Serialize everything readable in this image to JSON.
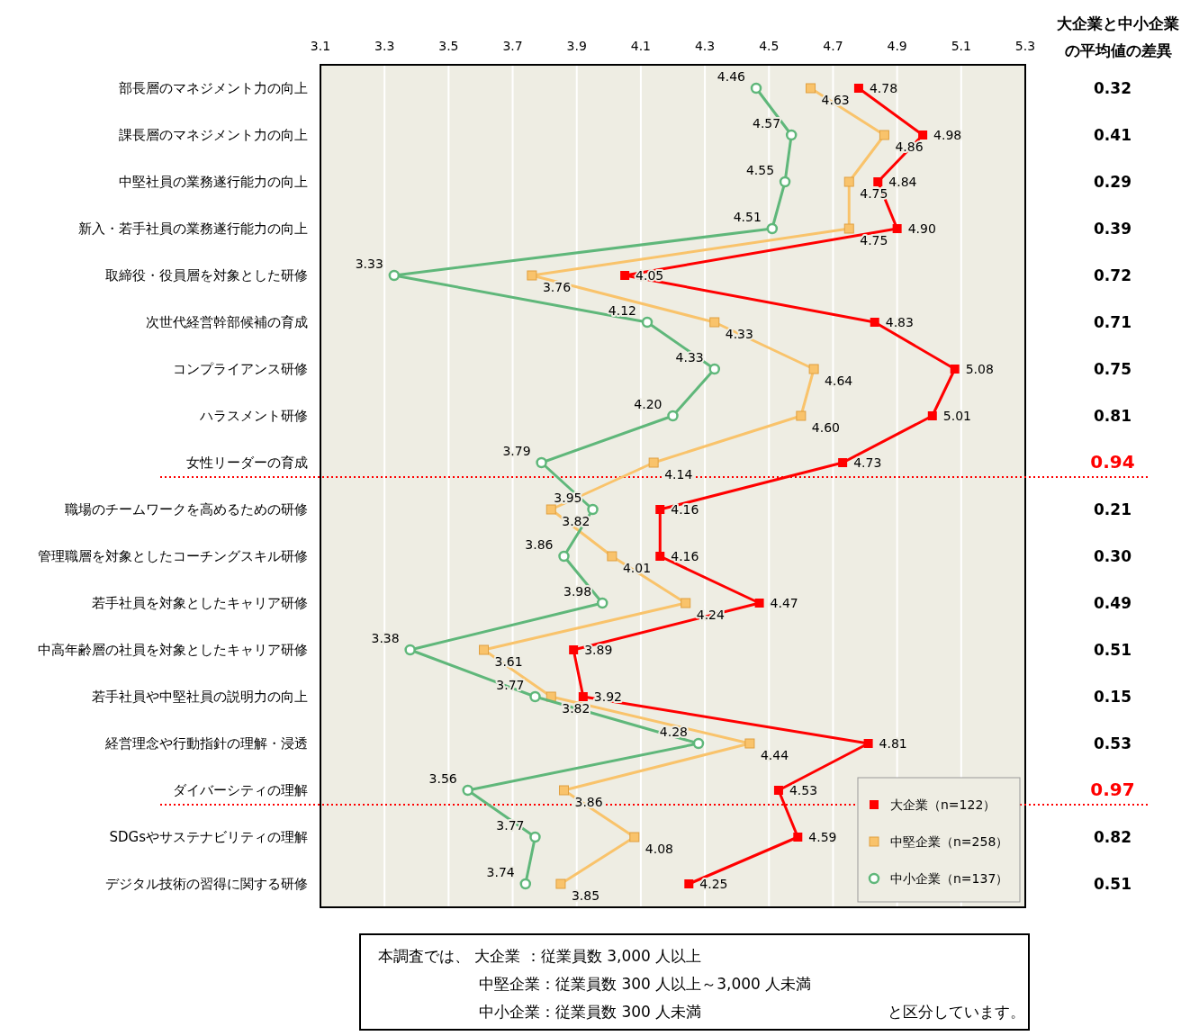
{
  "chart_data": {
    "type": "line",
    "orientation": "horizontal",
    "categories": [
      "部長層のマネジメント力の向上",
      "課長層のマネジメント力の向上",
      "中堅社員の業務遂行能力の向上",
      "新入・若手社員の業務遂行能力の向上",
      "取締役・役員層を対象とした研修",
      "次世代経営幹部候補の育成",
      "コンプライアンス研修",
      "ハラスメント研修",
      "女性リーダーの育成",
      "職場のチームワークを高めるための研修",
      "管理職層を対象としたコーチングスキル研修",
      "若手社員を対象としたキャリア研修",
      "中高年齢層の社員を対象としたキャリア研修",
      "若手社員や中堅社員の説明力の向上",
      "経営理念や行動指針の理解・浸透",
      "ダイバーシティの理解",
      "SDGsやサステナビリティの理解",
      "デジタル技術の習得に関する研修"
    ],
    "series": [
      {
        "name": "大企業（n=122）",
        "color": "#ff0000",
        "marker": "square",
        "values": [
          4.78,
          4.98,
          4.84,
          4.9,
          4.05,
          4.83,
          5.08,
          5.01,
          4.73,
          4.16,
          4.16,
          4.47,
          3.89,
          3.92,
          4.81,
          4.53,
          4.59,
          4.25
        ],
        "value_labels": [
          "4.78",
          "4.98",
          "4.84",
          "4.90",
          "4.05",
          "4.83",
          "5.08",
          "5.01",
          "4.73",
          "4.16",
          "4.16",
          "4.47",
          "3.89",
          "3.92",
          "4.81",
          "4.53",
          "4.59",
          "4.25"
        ]
      },
      {
        "name": "中堅企業（n=258）",
        "color": "#f9c36b",
        "marker": "square",
        "values": [
          4.63,
          4.86,
          4.75,
          4.75,
          3.76,
          4.33,
          4.64,
          4.6,
          4.14,
          3.82,
          4.01,
          4.24,
          3.61,
          3.82,
          4.44,
          3.86,
          4.08,
          3.85
        ],
        "value_labels": [
          "4.63",
          "4.86",
          "4.75",
          "4.75",
          "3.76",
          "4.33",
          "4.64",
          "4.60",
          "4.14",
          "3.82",
          "4.01",
          "4.24",
          "3.61",
          "3.82",
          "4.44",
          "3.86",
          "4.08",
          "3.85"
        ]
      },
      {
        "name": "中小企業（n=137）",
        "color": "#5fb77a",
        "marker": "circle",
        "values": [
          4.46,
          4.57,
          4.55,
          4.51,
          3.33,
          4.12,
          4.33,
          4.2,
          3.79,
          3.95,
          3.86,
          3.98,
          3.38,
          3.77,
          4.28,
          3.56,
          3.77,
          3.74
        ],
        "value_labels": [
          "4.46",
          "4.57",
          "4.55",
          "4.51",
          "3.33",
          "4.12",
          "4.33",
          "4.20",
          "3.79",
          "3.95",
          "3.86",
          "3.98",
          "3.38",
          "3.77",
          "4.28",
          "3.56",
          "3.77",
          "3.74"
        ]
      }
    ],
    "xlim": [
      3.1,
      5.3
    ],
    "xticks": [
      3.1,
      3.3,
      3.5,
      3.7,
      3.9,
      4.1,
      4.3,
      4.5,
      4.7,
      4.9,
      5.1,
      5.3
    ],
    "grid": "x",
    "legend": "bottom right",
    "ref_lines": [
      {
        "axis": "y",
        "value": "女性リーダーの育成",
        "color": "#ff0000",
        "line_style": "dotted"
      },
      {
        "axis": "y",
        "value": "ダイバーシティの理解",
        "color": "#ff0000",
        "line_style": "dotted"
      }
    ],
    "annotations": [
      "大企業と中小企業",
      "の平均値の差異",
      "0.32",
      "0.41",
      "0.29",
      "0.39",
      "0.72",
      "0.71",
      "0.75",
      "0.81",
      "0.94",
      "0.21",
      "0.30",
      "0.49",
      "0.51",
      "0.15",
      "0.53",
      "0.97",
      "0.82",
      "0.51",
      "本調査では、 大企業 ：従業員数 3,000 人以上",
      "中堅企業：従業員数 300 人以上～3,000 人未満",
      "中小企業：従業員数 300 人未満",
      "と区分しています。"
    ]
  }
}
